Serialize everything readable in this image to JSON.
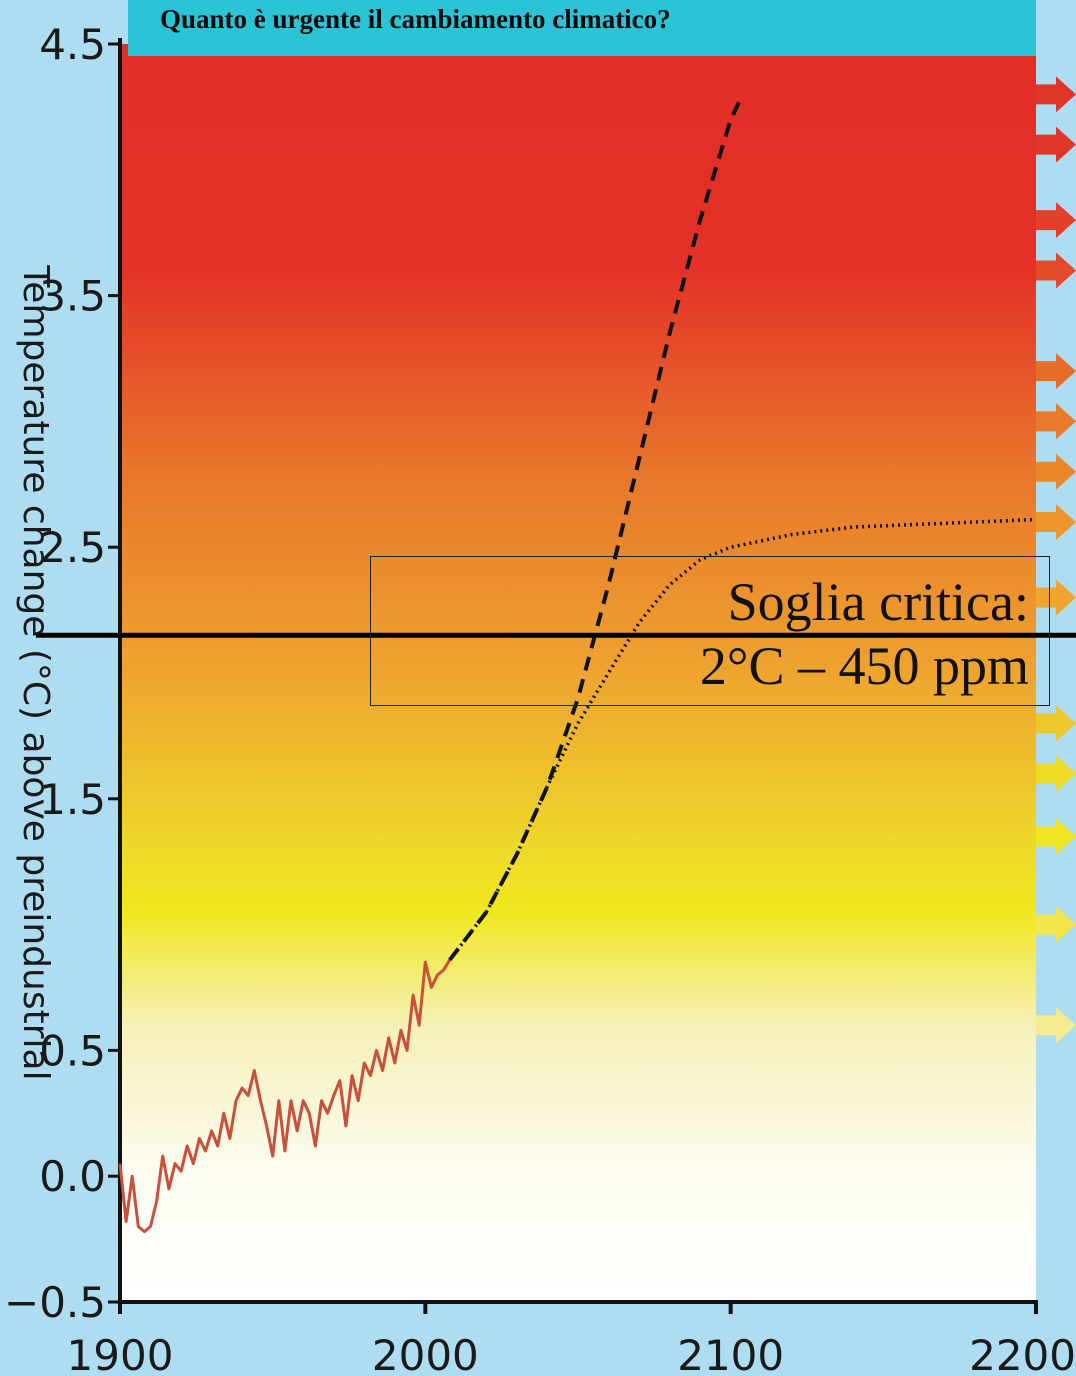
{
  "banner": {
    "title": "Quanto è urgente il cambiamento climatico?"
  },
  "threshold": {
    "line1": "Soglia critica:",
    "line2": "2°C – 450 ppm",
    "value": 2.15
  },
  "colors": {
    "background": "#aedcf0",
    "banner": "#2bc3d6",
    "observed": "#c9503a",
    "projection": "#111111",
    "arrows": [
      "#e0362a",
      "#e0362a",
      "#e2402a",
      "#e24a2a",
      "#e76c2a",
      "#e9792b",
      "#eb872b",
      "#ee962c",
      "#efa52e",
      "#edc82d",
      "#eedb25",
      "#f0e623",
      "#f1e64a",
      "#f4ec8e"
    ]
  },
  "chart_data": {
    "type": "line",
    "title": "",
    "xlabel": "",
    "ylabel": "Temperature change (°C) above preindustrial",
    "xlim": [
      1900,
      2200
    ],
    "ylim": [
      -0.5,
      4.5
    ],
    "x_ticks": [
      1900,
      2000,
      2100,
      2200
    ],
    "x_tick_labels": [
      "1900",
      "2000",
      "2100",
      "2200"
    ],
    "y_ticks": [
      -0.5,
      0.0,
      0.5,
      1.5,
      2.5,
      3.5,
      4.5
    ],
    "y_tick_labels": [
      "−0.5",
      "0.0",
      "0.5",
      "1.5",
      "2.5",
      "3.5",
      "4.5"
    ],
    "background_gradient": "temperature-scaled: white (low) → yellow → orange → red (high)",
    "series": [
      {
        "style": "solid",
        "color": "#c9503a",
        "x": [
          1900,
          1902,
          1904,
          1906,
          1908,
          1910,
          1912,
          1914,
          1916,
          1918,
          1920,
          1922,
          1924,
          1926,
          1928,
          1930,
          1932,
          1934,
          1936,
          1938,
          1940,
          1942,
          1944,
          1946,
          1948,
          1950,
          1952,
          1954,
          1956,
          1958,
          1960,
          1962,
          1964,
          1966,
          1968,
          1970,
          1972,
          1974,
          1976,
          1978,
          1980,
          1982,
          1984,
          1986,
          1988,
          1990,
          1992,
          1994,
          1996,
          1998,
          2000,
          2002,
          2004,
          2006,
          2008
        ],
        "y": [
          0.05,
          -0.18,
          0.0,
          -0.2,
          -0.22,
          -0.2,
          -0.1,
          0.08,
          -0.05,
          0.05,
          0.02,
          0.12,
          0.05,
          0.15,
          0.1,
          0.18,
          0.12,
          0.25,
          0.15,
          0.3,
          0.35,
          0.32,
          0.42,
          0.3,
          0.2,
          0.08,
          0.3,
          0.1,
          0.3,
          0.18,
          0.3,
          0.25,
          0.12,
          0.3,
          0.25,
          0.32,
          0.38,
          0.2,
          0.4,
          0.3,
          0.45,
          0.4,
          0.5,
          0.42,
          0.55,
          0.45,
          0.58,
          0.5,
          0.72,
          0.6,
          0.85,
          0.75,
          0.8,
          0.82,
          0.86
        ]
      },
      {
        "style": "dashed",
        "color": "#111111",
        "x": [
          2008,
          2020,
          2030,
          2040,
          2050,
          2060,
          2070,
          2080,
          2090,
          2100,
          2104
        ],
        "y": [
          0.86,
          1.05,
          1.28,
          1.55,
          1.9,
          2.35,
          2.85,
          3.35,
          3.8,
          4.2,
          4.3
        ]
      },
      {
        "style": "dotted",
        "color": "#111111",
        "x": [
          2008,
          2020,
          2030,
          2040,
          2050,
          2060,
          2070,
          2080,
          2090,
          2100,
          2120,
          2140,
          2160,
          2180,
          2200
        ],
        "y": [
          0.86,
          1.05,
          1.28,
          1.55,
          1.8,
          2.0,
          2.2,
          2.35,
          2.45,
          2.5,
          2.55,
          2.58,
          2.59,
          2.6,
          2.61
        ]
      }
    ],
    "arrow_markers": [
      4.3,
      4.1,
      3.8,
      3.6,
      3.2,
      3.0,
      2.8,
      2.6,
      2.3,
      1.8,
      1.6,
      1.35,
      1.0,
      0.6
    ],
    "grid": false,
    "legend": "none"
  }
}
